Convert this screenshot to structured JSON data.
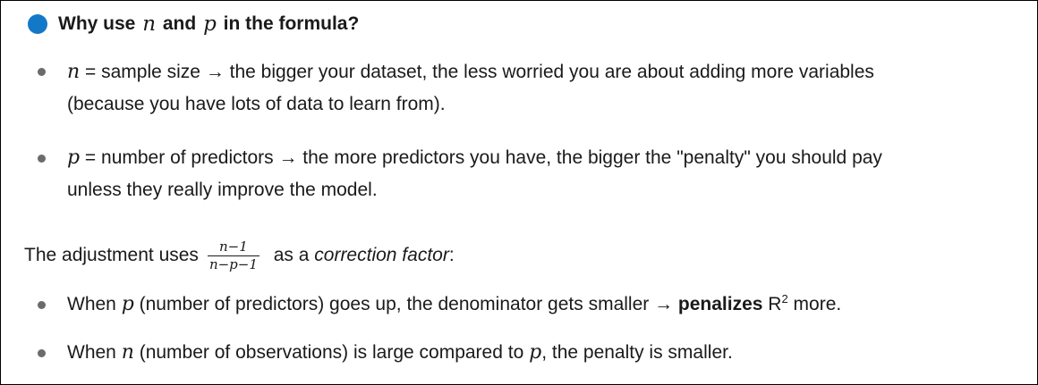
{
  "heading": {
    "prefix": "Why use",
    "var_n": "n",
    "middle": "and",
    "var_p": "p",
    "suffix": "in the formula?"
  },
  "bullets_top": [
    {
      "var": "n",
      "text_line1": " = sample size → the bigger your dataset, the less worried you are about adding more variables",
      "text_line2": "(because you have lots of data to learn from)."
    },
    {
      "var": "p",
      "text_line1": " = number of predictors → the more predictors you have, the bigger the \"penalty\" you should pay",
      "text_line2": "unless they really improve the model."
    }
  ],
  "adjustment": {
    "prefix": "The adjustment uses",
    "numerator": "n−1",
    "denominator": "n−p−1",
    "middle": " as a ",
    "emphasis": "correction factor",
    "suffix": ":"
  },
  "bullets_bottom": [
    {
      "prefix": "When ",
      "var": "p",
      "mid": " (number of predictors) goes up, the denominator gets smaller → ",
      "bold": "penalizes",
      "after_bold": " R",
      "sup": "2",
      "suffix": " more."
    },
    {
      "prefix": "When ",
      "var": "n",
      "mid": " (number of observations) is large compared to ",
      "var2": "p",
      "suffix": ", the penalty is smaller."
    }
  ],
  "colors": {
    "accent_dot": "#1478c8",
    "bullet": "#6b6b6b",
    "border": "#000000"
  }
}
